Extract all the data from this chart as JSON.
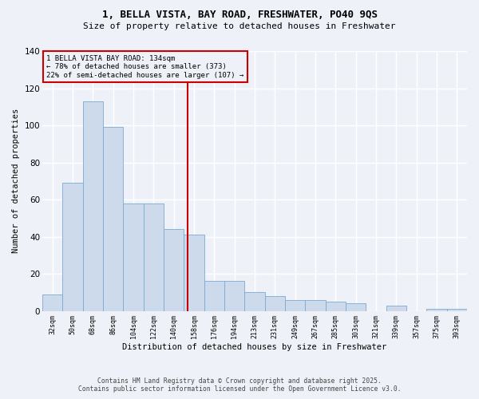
{
  "title_line1": "1, BELLA VISTA, BAY ROAD, FRESHWATER, PO40 9QS",
  "title_line2": "Size of property relative to detached houses in Freshwater",
  "xlabel": "Distribution of detached houses by size in Freshwater",
  "ylabel": "Number of detached properties",
  "bar_color": "#ccdaeb",
  "bar_edge_color": "#7aaad0",
  "background_color": "#eef2f8",
  "grid_color": "#ffffff",
  "annotation_box_color": "#cc0000",
  "property_line_color": "#cc0000",
  "property_line_x": 6.67,
  "annotation_line1": "1 BELLA VISTA BAY ROAD: 134sqm",
  "annotation_line2": "← 78% of detached houses are smaller (373)",
  "annotation_line3": "22% of semi-detached houses are larger (107) →",
  "categories": [
    "32sqm",
    "50sqm",
    "68sqm",
    "86sqm",
    "104sqm",
    "122sqm",
    "140sqm",
    "158sqm",
    "176sqm",
    "194sqm",
    "213sqm",
    "231sqm",
    "249sqm",
    "267sqm",
    "285sqm",
    "303sqm",
    "321sqm",
    "339sqm",
    "357sqm",
    "375sqm",
    "393sqm"
  ],
  "values": [
    9,
    69,
    113,
    99,
    58,
    58,
    44,
    41,
    16,
    16,
    10,
    8,
    6,
    6,
    5,
    4,
    0,
    3,
    0,
    1,
    1
  ],
  "ylim": [
    0,
    140
  ],
  "yticks": [
    0,
    20,
    40,
    60,
    80,
    100,
    120,
    140
  ],
  "footnote_line1": "Contains HM Land Registry data © Crown copyright and database right 2025.",
  "footnote_line2": "Contains public sector information licensed under the Open Government Licence v3.0."
}
